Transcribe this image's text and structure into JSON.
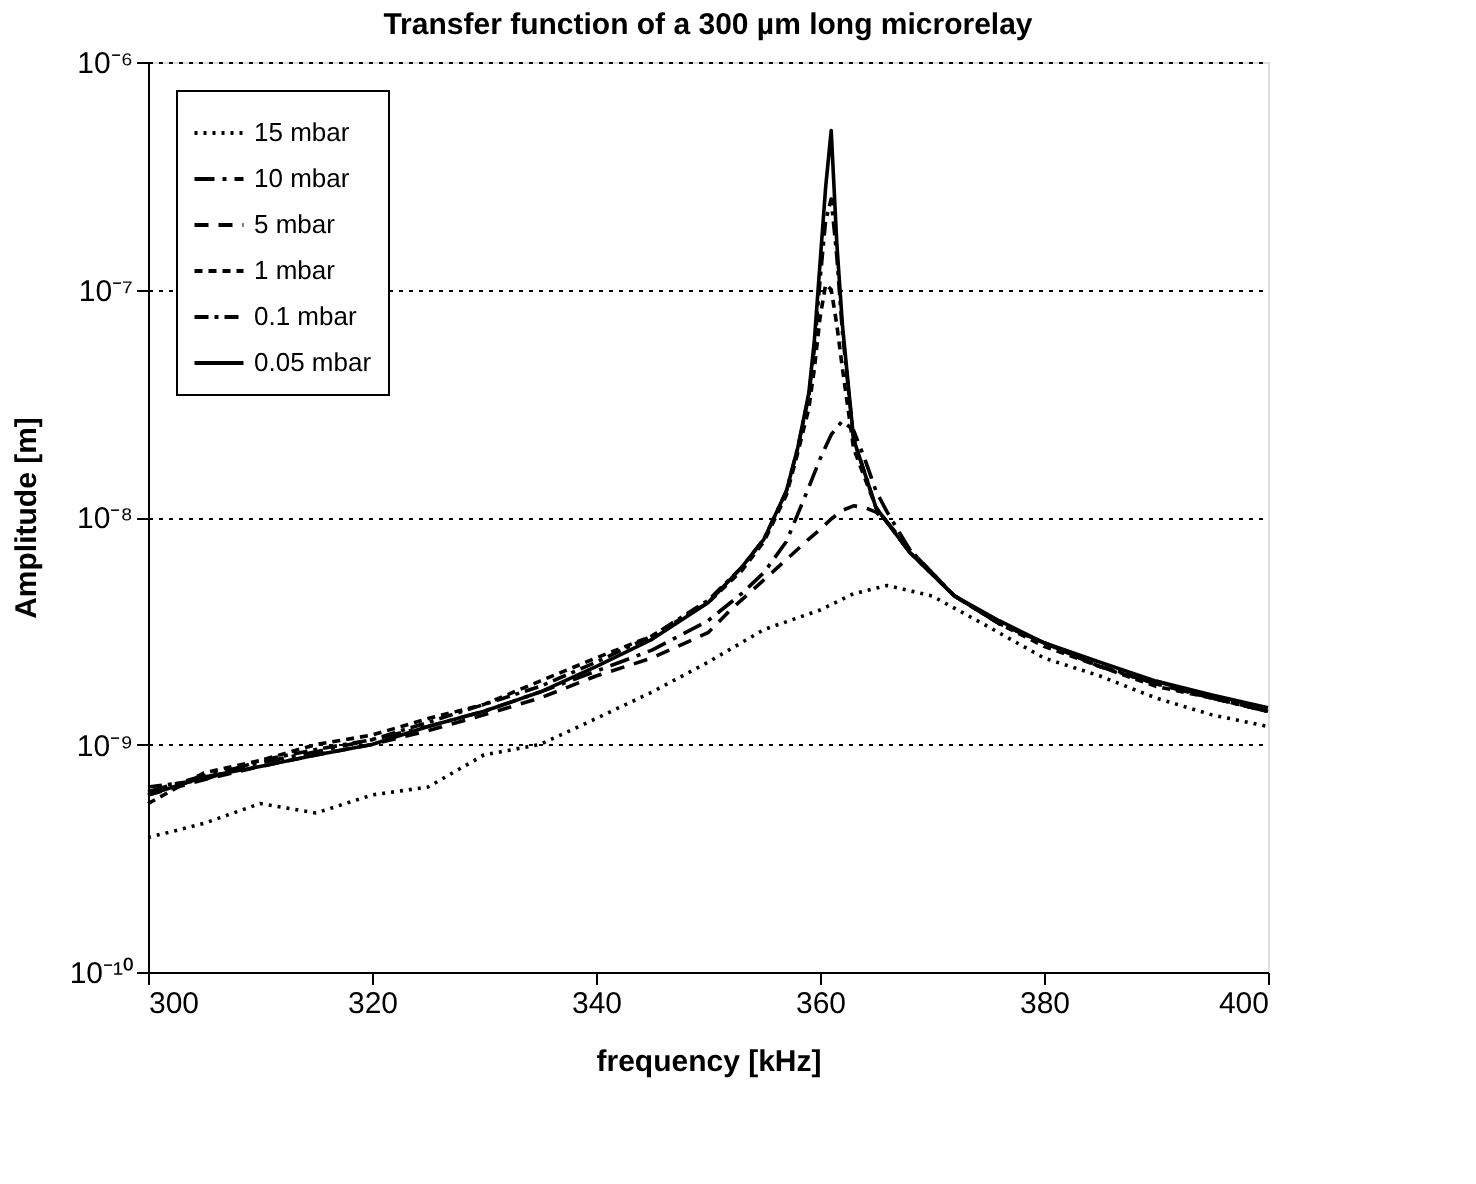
{
  "chart_data": {
    "type": "line",
    "title": "Transfer function of a 300 µm long microrelay",
    "xlabel": "frequency [kHz]",
    "ylabel": "Amplitude [m]",
    "xlim": [
      300,
      400
    ],
    "xticks": [
      300,
      320,
      340,
      360,
      380,
      400
    ],
    "ylim": [
      1e-10,
      1e-06
    ],
    "yticks": [
      {
        "value": 1e-10,
        "label": "10⁻¹⁰"
      },
      {
        "value": 1e-09,
        "label": "10⁻⁹"
      },
      {
        "value": 1e-08,
        "label": "10⁻⁸"
      },
      {
        "value": 1e-07,
        "label": "10⁻⁷"
      },
      {
        "value": 1e-06,
        "label": "10⁻⁶"
      }
    ],
    "log": "y",
    "grid": "y",
    "legend": "top left",
    "marker": "none",
    "series": [
      {
        "name": "15 mbar",
        "color": "#000000",
        "line_style": "dotted",
        "x": [
          300,
          305,
          310,
          315,
          320,
          325,
          330,
          335,
          340,
          345,
          350,
          355,
          360,
          363,
          366,
          370,
          375,
          380,
          385,
          390,
          395,
          400
        ],
        "values": [
          3.9e-10,
          4.5e-10,
          5.5e-10,
          5e-10,
          6e-10,
          6.5e-10,
          9e-10,
          1e-09,
          1.3e-09,
          1.7e-09,
          2.3e-09,
          3.2e-09,
          3.9e-09,
          4.6e-09,
          5e-09,
          4.5e-09,
          3.3e-09,
          2.4e-09,
          2e-09,
          1.6e-09,
          1.35e-09,
          1.2e-09
        ]
      },
      {
        "name": "10 mbar",
        "color": "#000000",
        "line_style": "dashed",
        "x": [
          300,
          305,
          310,
          315,
          320,
          325,
          330,
          335,
          340,
          345,
          350,
          353,
          355,
          357,
          359,
          360,
          361,
          362,
          363,
          364,
          365,
          366,
          368,
          372,
          376,
          380,
          385,
          390,
          395,
          400
        ],
        "values": [
          6.2e-10,
          7.3e-10,
          8.3e-10,
          9.3e-10,
          1.05e-09,
          1.2e-09,
          1.4e-09,
          1.7e-09,
          2.1e-09,
          2.6e-09,
          3.5e-09,
          4.6e-09,
          5.7e-09,
          7.8e-09,
          1.35e-08,
          1.8e-08,
          2.3e-08,
          2.65e-08,
          2.4e-08,
          1.8e-08,
          1.3e-08,
          1.05e-08,
          7.2e-09,
          4.5e-09,
          3.4e-09,
          2.8e-09,
          2.2e-09,
          1.85e-09,
          1.6e-09,
          1.4e-09
        ]
      },
      {
        "name": "5 mbar",
        "color": "#000000",
        "line_style": "dashed",
        "x": [
          300,
          305,
          310,
          315,
          320,
          325,
          330,
          335,
          340,
          345,
          350,
          352,
          355,
          357,
          359,
          360,
          361,
          362,
          363,
          364,
          365,
          366,
          368,
          372,
          376,
          380,
          385,
          390,
          395,
          400
        ],
        "values": [
          6e-10,
          7e-10,
          8e-10,
          9e-10,
          1e-09,
          1.15e-09,
          1.35e-09,
          1.6e-09,
          2e-09,
          2.4e-09,
          3.1e-09,
          3.9e-09,
          5.3e-09,
          6.5e-09,
          8e-09,
          8.8e-09,
          9.8e-09,
          1.07e-08,
          1.12e-08,
          1.1e-08,
          1.05e-08,
          9.5e-09,
          7.2e-09,
          4.5e-09,
          3.4e-09,
          2.8e-09,
          2.2e-09,
          1.85e-09,
          1.6e-09,
          1.4e-09
        ]
      },
      {
        "name": "1 mbar",
        "color": "#000000",
        "line_style": "dashed",
        "x": [
          300,
          305,
          310,
          315,
          320,
          325,
          330,
          335,
          340,
          345,
          350,
          353,
          355,
          357,
          358,
          359,
          359.5,
          360,
          360.5,
          361,
          361.5,
          362,
          363,
          365,
          368,
          372,
          376,
          380,
          385,
          390,
          395,
          400
        ],
        "values": [
          5.5e-10,
          7.5e-10,
          8.5e-10,
          1e-09,
          1.1e-09,
          1.3e-09,
          1.5e-09,
          1.9e-09,
          2.4e-09,
          3e-09,
          4.2e-09,
          5.8e-09,
          7.8e-09,
          1.25e-08,
          1.9e-08,
          3e-08,
          4.5e-08,
          7.5e-08,
          1.05e-07,
          1e-07,
          7e-08,
          4.5e-08,
          2e-08,
          1.1e-08,
          7e-09,
          4.5e-09,
          3.4e-09,
          2.7e-09,
          2.2e-09,
          1.8e-09,
          1.6e-09,
          1.4e-09
        ]
      },
      {
        "name": "0.1 mbar",
        "color": "#000000",
        "line_style": "dashed",
        "x": [
          300,
          305,
          310,
          315,
          320,
          325,
          330,
          335,
          340,
          345,
          350,
          353,
          355,
          357,
          358,
          359,
          359.5,
          360,
          360.5,
          361,
          361.5,
          362,
          363,
          365,
          368,
          372,
          376,
          380,
          385,
          390,
          395,
          400
        ],
        "values": [
          6.5e-10,
          7e-10,
          8.5e-10,
          9.5e-10,
          1.05e-09,
          1.25e-09,
          1.5e-09,
          1.8e-09,
          2.3e-09,
          3e-09,
          4.3e-09,
          6e-09,
          8e-09,
          1.3e-08,
          2e-08,
          3.4e-08,
          5.5e-08,
          1.1e-07,
          2e-07,
          2.5e-07,
          1.4e-07,
          6.5e-08,
          2.2e-08,
          1.1e-08,
          7e-09,
          4.5e-09,
          3.4e-09,
          2.8e-09,
          2.2e-09,
          1.9e-09,
          1.6e-09,
          1.4e-09
        ]
      },
      {
        "name": "0.05 mbar",
        "color": "#000000",
        "line_style": "solid",
        "x": [
          300,
          305,
          310,
          315,
          320,
          325,
          330,
          335,
          340,
          345,
          350,
          353,
          355,
          357,
          358,
          359,
          359.5,
          360,
          360.5,
          361,
          361.5,
          362,
          363,
          365,
          368,
          372,
          376,
          380,
          385,
          390,
          395,
          400
        ],
        "values": [
          6e-10,
          7.2e-10,
          8e-10,
          9e-10,
          1e-09,
          1.2e-09,
          1.4e-09,
          1.7e-09,
          2.2e-09,
          2.9e-09,
          4.2e-09,
          6e-09,
          8e-09,
          1.3e-08,
          2e-08,
          3.5e-08,
          6e-08,
          1.3e-07,
          2.8e-07,
          5e-07,
          1.6e-07,
          7e-08,
          2.2e-08,
          1.1e-08,
          7e-09,
          4.5e-09,
          3.5e-09,
          2.8e-09,
          2.3e-09,
          1.9e-09,
          1.65e-09,
          1.45e-09
        ]
      }
    ]
  }
}
